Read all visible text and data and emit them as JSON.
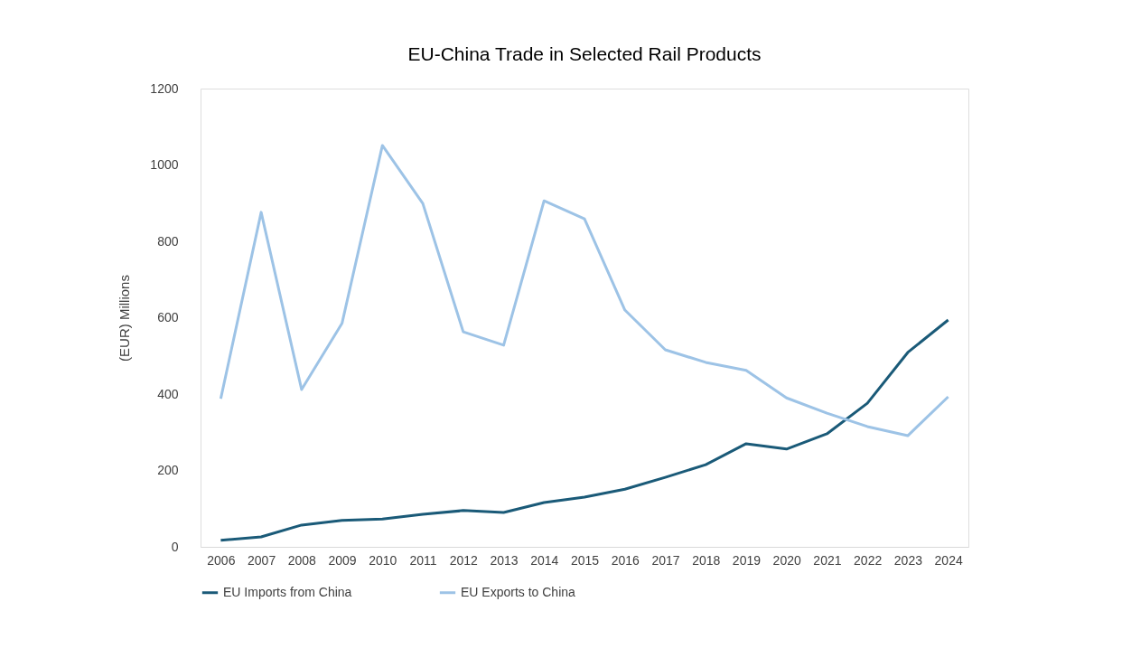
{
  "chart_data": {
    "type": "line",
    "title": "EU-China Trade in Selected Rail Products",
    "ylabel": "(EUR) Millions",
    "categories": [
      "2006",
      "2007",
      "2008",
      "2009",
      "2010",
      "2011",
      "2012",
      "2013",
      "2014",
      "2015",
      "2016",
      "2017",
      "2018",
      "2019",
      "2020",
      "2021",
      "2022",
      "2023",
      "2024"
    ],
    "series": [
      {
        "name": "EU Imports from China",
        "color": "#1a5a78",
        "values": [
          17,
          26,
          57,
          69,
          73,
          85,
          95,
          90,
          116,
          130,
          151,
          182,
          215,
          270,
          256,
          296,
          376,
          509,
          594
        ]
      },
      {
        "name": "EU Exports to China",
        "color": "#9dc3e6",
        "values": [
          388,
          876,
          412,
          585,
          1051,
          899,
          563,
          528,
          906,
          859,
          620,
          516,
          483,
          462,
          390,
          350,
          315,
          291,
          393
        ]
      }
    ],
    "ylim": [
      0,
      1200
    ],
    "yticks": [
      0,
      200,
      400,
      600,
      800,
      1000,
      1200
    ],
    "grid": false,
    "legend": "bottom",
    "marker": "none",
    "line_style": "solid"
  }
}
